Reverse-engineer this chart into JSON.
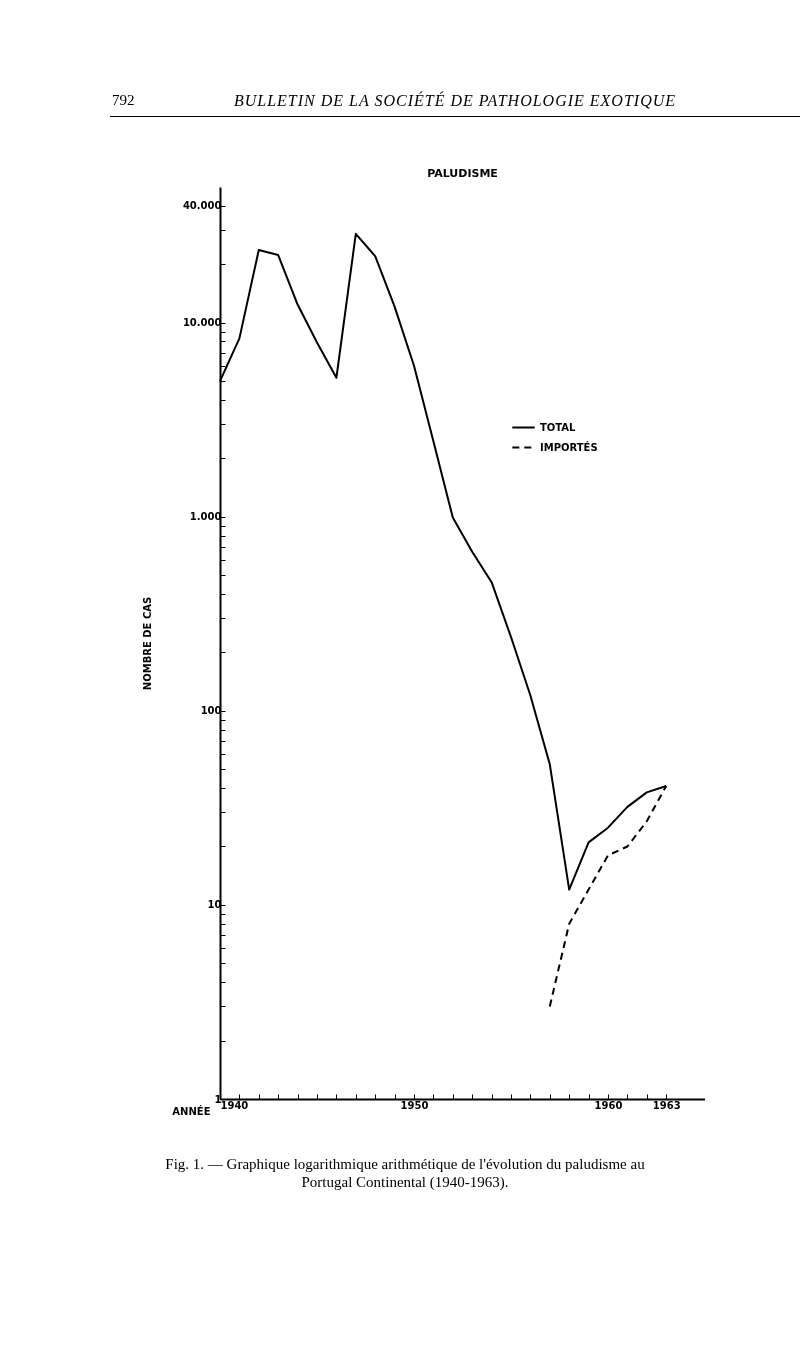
{
  "chart_data": {
    "type": "line",
    "title": "PALUDISME",
    "xlabel": "ANNÉE",
    "ylabel": "NOMBRE DE CAS",
    "log": "y",
    "grid": false,
    "legend": "right",
    "marker": "none",
    "annotations": [
      "792",
      "BULLETIN DE LA SOCIÉTÉ DE PATHOLOGIE EXOTIQUE",
      "Fig. 1. — Graphique logarithmique arithmétique de l'évolution du paludisme au Portugal Continental (1940-1963)."
    ],
    "xlim": [
      1940,
      1965
    ],
    "ylim": [
      1,
      50000
    ],
    "xticks": [
      1940,
      {
        "value": 1941,
        "label": null
      },
      {
        "value": 1942,
        "label": null
      },
      {
        "value": 1943,
        "label": null
      },
      {
        "value": 1944,
        "label": null
      },
      {
        "value": 1945,
        "label": null
      },
      {
        "value": 1946,
        "label": null
      },
      {
        "value": 1947,
        "label": null
      },
      {
        "value": 1948,
        "label": null
      },
      {
        "value": 1949,
        "label": null
      },
      1950,
      {
        "value": 1951,
        "label": null
      },
      {
        "value": 1952,
        "label": null
      },
      {
        "value": 1953,
        "label": null
      },
      {
        "value": 1954,
        "label": null
      },
      {
        "value": 1955,
        "label": null
      },
      {
        "value": 1956,
        "label": null
      },
      {
        "value": 1957,
        "label": null
      },
      {
        "value": 1958,
        "label": null
      },
      {
        "value": 1959,
        "label": null
      },
      1960,
      {
        "value": 1961,
        "label": null
      },
      {
        "value": 1962,
        "label": null
      },
      1963
    ],
    "yticks": [
      1,
      {
        "value": 2,
        "label": null
      },
      {
        "value": 3,
        "label": null
      },
      {
        "value": 4,
        "label": null
      },
      {
        "value": 5,
        "label": null
      },
      {
        "value": 6,
        "label": null
      },
      {
        "value": 7,
        "label": null
      },
      {
        "value": 8,
        "label": null
      },
      {
        "value": 9,
        "label": null
      },
      10,
      {
        "value": 20,
        "label": null
      },
      {
        "value": 30,
        "label": null
      },
      {
        "value": 40,
        "label": null
      },
      {
        "value": 50,
        "label": null
      },
      {
        "value": 60,
        "label": null
      },
      {
        "value": 70,
        "label": null
      },
      {
        "value": 80,
        "label": null
      },
      {
        "value": 90,
        "label": null
      },
      100,
      {
        "value": 200,
        "label": null
      },
      {
        "value": 300,
        "label": null
      },
      {
        "value": 400,
        "label": null
      },
      {
        "value": 500,
        "label": null
      },
      {
        "value": 600,
        "label": null
      },
      {
        "value": 700,
        "label": null
      },
      {
        "value": 800,
        "label": null
      },
      {
        "value": 900,
        "label": null
      },
      {
        "value": 1000,
        "label": "1.000"
      },
      {
        "value": 2000,
        "label": null
      },
      {
        "value": 3000,
        "label": null
      },
      {
        "value": 4000,
        "label": null
      },
      {
        "value": 5000,
        "label": null
      },
      {
        "value": 6000,
        "label": null
      },
      {
        "value": 7000,
        "label": null
      },
      {
        "value": 8000,
        "label": null
      },
      {
        "value": 9000,
        "label": null
      },
      {
        "value": 10000,
        "label": "10.000"
      },
      {
        "value": 20000,
        "label": null
      },
      {
        "value": 30000,
        "label": null
      },
      {
        "value": 40000,
        "label": "40.000"
      }
    ],
    "series": [
      {
        "name": "TOTAL",
        "color": "#000000",
        "line_style": "solid",
        "x": [
          1940,
          1941,
          1942,
          1943,
          1944,
          1945,
          1946,
          1947,
          1948,
          1949,
          1950,
          1951,
          1952,
          1953,
          1954,
          1955,
          1956,
          1957,
          1958,
          1959,
          1960,
          1961,
          1962,
          1963
        ],
        "values": [
          5000,
          8300,
          23700,
          22300,
          12400,
          7900,
          5200,
          28700,
          22000,
          12100,
          6000,
          2450,
          990,
          660,
          460,
          240,
          120,
          53,
          12,
          21,
          25,
          32,
          38,
          41
        ]
      },
      {
        "name": "IMPORTÉS",
        "color": "#000000",
        "line_style": "dashed",
        "x": [
          1957,
          1958,
          1959,
          1960,
          1961,
          1962,
          1963
        ],
        "values": [
          3,
          8,
          12,
          18,
          20,
          27,
          41
        ]
      }
    ]
  }
}
